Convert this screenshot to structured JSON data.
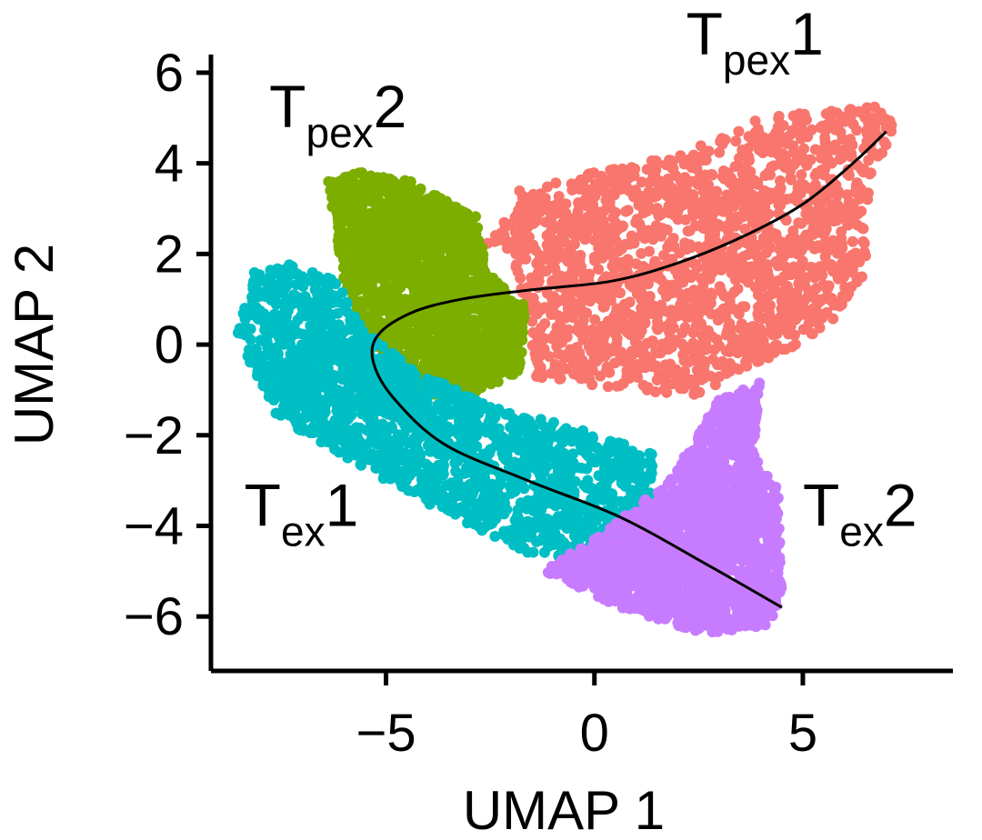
{
  "chart_data": {
    "type": "scatter",
    "xlabel": "UMAP 1",
    "ylabel": "UMAP 2",
    "xlim": [
      -9.2,
      8.6
    ],
    "ylim": [
      -7.2,
      6.4
    ],
    "x_ticks": [
      {
        "value": -5,
        "label": "−5"
      },
      {
        "value": 0,
        "label": "0"
      },
      {
        "value": 5,
        "label": "5"
      }
    ],
    "y_ticks": [
      {
        "value": 6,
        "label": "6"
      },
      {
        "value": 4,
        "label": "4"
      },
      {
        "value": 2,
        "label": "2"
      },
      {
        "value": 0,
        "label": "0"
      },
      {
        "value": -2,
        "label": "−2"
      },
      {
        "value": -4,
        "label": "−4"
      },
      {
        "value": -6,
        "label": "−6"
      }
    ],
    "grid": false,
    "legend": "none",
    "clusters": [
      {
        "name": "Tpex1",
        "label_main": "T",
        "label_sub": "pex",
        "label_suffix": "1",
        "label_pos": [
          2.2,
          6.4
        ],
        "color": "#F8766D",
        "outline": [
          [
            -2.6,
            2.2
          ],
          [
            -1.8,
            3.4
          ],
          [
            0,
            3.8
          ],
          [
            2,
            4.2
          ],
          [
            4,
            5.0
          ],
          [
            6.8,
            5.3
          ],
          [
            7.2,
            4.8
          ],
          [
            6.6,
            3.6
          ],
          [
            6.5,
            1.6
          ],
          [
            5.6,
            0.4
          ],
          [
            4.5,
            -0.2
          ],
          [
            3.4,
            -0.6
          ],
          [
            2.4,
            -1.2
          ],
          [
            1.2,
            -1.0
          ],
          [
            -1.4,
            -0.8
          ],
          [
            -1.6,
            0.6
          ],
          [
            -2.0,
            2.0
          ]
        ]
      },
      {
        "name": "Tpex2",
        "label_main": "T",
        "label_sub": "pex",
        "label_suffix": "2",
        "label_pos": [
          -7.8,
          4.8
        ],
        "color": "#7CAE00",
        "outline": [
          [
            -6.2,
            2.4
          ],
          [
            -6.4,
            3.6
          ],
          [
            -5.6,
            3.8
          ],
          [
            -4.4,
            3.6
          ],
          [
            -2.8,
            2.8
          ],
          [
            -2.6,
            1.6
          ],
          [
            -1.6,
            0.8
          ],
          [
            -1.8,
            -0.6
          ],
          [
            -3.2,
            -1.2
          ],
          [
            -4.6,
            -1.0
          ],
          [
            -5.5,
            0.4
          ],
          [
            -6.0,
            1.4
          ]
        ]
      },
      {
        "name": "Tex1",
        "label_main": "T",
        "label_sub": "ex",
        "label_suffix": "1",
        "label_pos": [
          -8.4,
          -4.0
        ],
        "color": "#00BFC4",
        "outline": [
          [
            -8.6,
            0.2
          ],
          [
            -8.2,
            1.6
          ],
          [
            -7.2,
            1.8
          ],
          [
            -6.2,
            1.4
          ],
          [
            -5.4,
            0.2
          ],
          [
            -4.2,
            -0.6
          ],
          [
            -2.4,
            -1.4
          ],
          [
            -0.6,
            -1.8
          ],
          [
            1.4,
            -2.4
          ],
          [
            1.4,
            -3.6
          ],
          [
            0.2,
            -4.8
          ],
          [
            -1.6,
            -4.6
          ],
          [
            -3.8,
            -3.6
          ],
          [
            -5.8,
            -2.6
          ],
          [
            -7.6,
            -1.6
          ]
        ]
      },
      {
        "name": "Tex2",
        "label_main": "T",
        "label_sub": "ex",
        "label_suffix": "2",
        "label_pos": [
          5.0,
          -4.0
        ],
        "color": "#C77CFF",
        "outline": [
          [
            0.4,
            -4.0
          ],
          [
            1.8,
            -3.0
          ],
          [
            3.0,
            -1.2
          ],
          [
            4.0,
            -0.8
          ],
          [
            3.8,
            -2.4
          ],
          [
            4.4,
            -3.2
          ],
          [
            4.5,
            -5.4
          ],
          [
            4.2,
            -6.2
          ],
          [
            2.6,
            -6.4
          ],
          [
            0.6,
            -5.8
          ],
          [
            -1.2,
            -5.0
          ]
        ]
      }
    ],
    "trajectory": [
      [
        7.0,
        4.7
      ],
      [
        6.2,
        4.0
      ],
      [
        5.0,
        3.1
      ],
      [
        3.6,
        2.4
      ],
      [
        2.0,
        1.8
      ],
      [
        0.4,
        1.4
      ],
      [
        -1.6,
        1.2
      ],
      [
        -3.2,
        1.0
      ],
      [
        -4.4,
        0.7
      ],
      [
        -5.2,
        0.2
      ],
      [
        -5.3,
        -0.4
      ],
      [
        -4.8,
        -1.2
      ],
      [
        -3.6,
        -2.2
      ],
      [
        -1.6,
        -3.0
      ],
      [
        0.6,
        -3.8
      ],
      [
        2.6,
        -4.8
      ],
      [
        4.5,
        -5.8
      ]
    ]
  }
}
